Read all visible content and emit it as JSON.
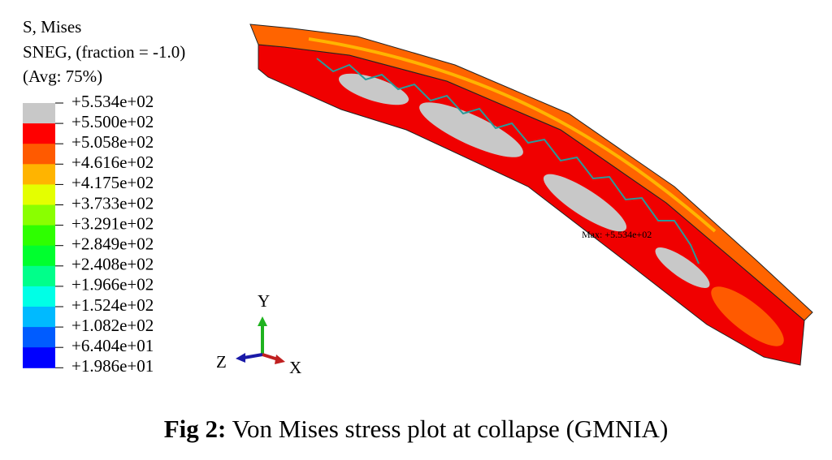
{
  "legend": {
    "title": [
      "S, Mises",
      "SNEG, (fraction = -1.0)",
      "(Avg: 75%)"
    ],
    "levels": [
      "+5.534e+02",
      "+5.500e+02",
      "+5.058e+02",
      "+4.616e+02",
      "+4.175e+02",
      "+3.733e+02",
      "+3.291e+02",
      "+2.849e+02",
      "+2.408e+02",
      "+1.966e+02",
      "+1.524e+02",
      "+1.082e+02",
      "+6.404e+01",
      "+1.986e+01"
    ],
    "colors": [
      "#c8c8c8",
      "#ff0000",
      "#ff5a00",
      "#ffb400",
      "#e4ff00",
      "#8aff00",
      "#2eff00",
      "#00ff2e",
      "#00ff8a",
      "#00ffe6",
      "#00baff",
      "#005cff",
      "#0000ff"
    ]
  },
  "annotation": "Max: +5.534e+02",
  "axes": {
    "y": "Y",
    "z": "Z",
    "x": "X"
  },
  "caption": {
    "label": "Fig 2:",
    "text": "Von Mises stress plot at collapse (GMNIA)"
  }
}
